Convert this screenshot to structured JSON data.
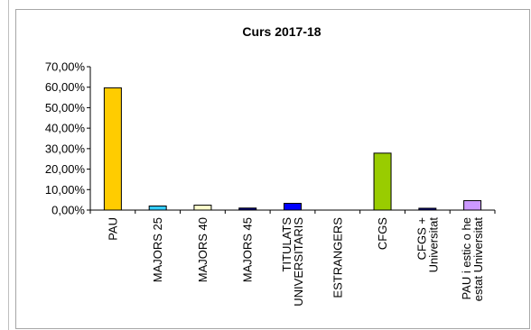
{
  "chart_data": {
    "type": "bar",
    "title": "Curs 2017-18",
    "xlabel": "",
    "ylabel": "",
    "ylim": [
      0,
      70
    ],
    "y_ticks": [
      "0,00%",
      "10,00%",
      "20,00%",
      "30,00%",
      "40,00%",
      "50,00%",
      "60,00%",
      "70,00%"
    ],
    "grid": false,
    "legend": "none",
    "categories": [
      [
        "PAU"
      ],
      [
        "MAJORS 25"
      ],
      [
        "MAJORS 40"
      ],
      [
        "MAJORS 45"
      ],
      [
        "TITULATS",
        "UNIVERSITARIS"
      ],
      [
        "ESTRANGERS"
      ],
      [
        "CFGS"
      ],
      [
        "CFGS +",
        "Universitat"
      ],
      [
        "PAU i estic o he",
        "estat Universitat"
      ]
    ],
    "values": [
      59.7,
      2.0,
      2.4,
      1.0,
      3.3,
      0,
      27.8,
      0.9,
      4.6
    ],
    "colors": [
      "#ffcc00",
      "#33ccff",
      "#ffffcc",
      "#000080",
      "#0000ff",
      "#00ffff",
      "#99cc00",
      "#000080",
      "#cc99ff"
    ]
  }
}
